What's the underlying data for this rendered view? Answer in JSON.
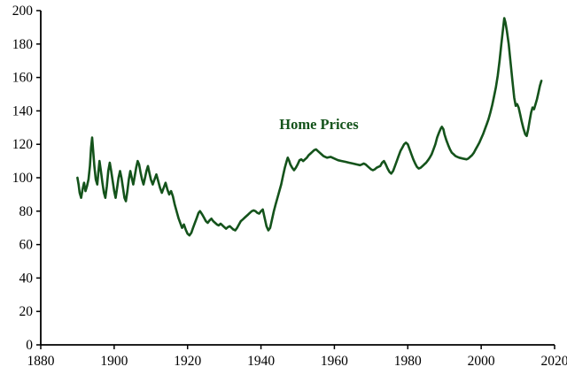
{
  "chart_data": {
    "type": "line",
    "title": "",
    "xlabel": "",
    "ylabel": "",
    "xlim": [
      1880,
      2020
    ],
    "ylim": [
      0,
      200
    ],
    "x_ticks": [
      1880,
      1900,
      1920,
      1940,
      1960,
      1980,
      2000,
      2020
    ],
    "y_ticks": [
      0,
      20,
      40,
      60,
      80,
      100,
      120,
      140,
      160,
      180,
      200
    ],
    "grid": false,
    "legend": false,
    "annotation": {
      "text": "Home Prices",
      "x": 1945,
      "y": 129
    },
    "colors": {
      "line": "#14531b",
      "axis": "#000000",
      "background": "#ffffff"
    },
    "series": [
      {
        "name": "Home Prices",
        "color": "#14531b",
        "points": [
          [
            1890,
            100
          ],
          [
            1890.3,
            96
          ],
          [
            1890.6,
            91
          ],
          [
            1891,
            88
          ],
          [
            1891.4,
            93
          ],
          [
            1891.8,
            97
          ],
          [
            1892.2,
            92
          ],
          [
            1892.6,
            95
          ],
          [
            1893,
            99
          ],
          [
            1893.4,
            107
          ],
          [
            1893.7,
            118
          ],
          [
            1894,
            124
          ],
          [
            1894.3,
            116
          ],
          [
            1894.6,
            107
          ],
          [
            1895,
            99
          ],
          [
            1895.4,
            96
          ],
          [
            1895.7,
            103
          ],
          [
            1896,
            110
          ],
          [
            1896.4,
            104
          ],
          [
            1896.8,
            97
          ],
          [
            1897.2,
            91
          ],
          [
            1897.6,
            88
          ],
          [
            1898,
            95
          ],
          [
            1898.4,
            104
          ],
          [
            1898.8,
            109
          ],
          [
            1899.2,
            104
          ],
          [
            1899.6,
            98
          ],
          [
            1900,
            92
          ],
          [
            1900.4,
            88
          ],
          [
            1900.8,
            94
          ],
          [
            1901.2,
            100
          ],
          [
            1901.6,
            104
          ],
          [
            1902,
            100
          ],
          [
            1902.4,
            94
          ],
          [
            1902.8,
            88
          ],
          [
            1903.2,
            86
          ],
          [
            1903.6,
            92
          ],
          [
            1904,
            99
          ],
          [
            1904.4,
            104
          ],
          [
            1904.8,
            100
          ],
          [
            1905.2,
            96
          ],
          [
            1905.6,
            101
          ],
          [
            1906,
            106
          ],
          [
            1906.4,
            110
          ],
          [
            1906.8,
            108
          ],
          [
            1907.2,
            103
          ],
          [
            1907.6,
            99
          ],
          [
            1908,
            96
          ],
          [
            1908.4,
            100
          ],
          [
            1908.8,
            104
          ],
          [
            1909.2,
            107
          ],
          [
            1909.6,
            103
          ],
          [
            1910,
            99
          ],
          [
            1910.5,
            96
          ],
          [
            1911,
            99
          ],
          [
            1911.5,
            102
          ],
          [
            1912,
            98
          ],
          [
            1912.5,
            94
          ],
          [
            1913,
            91
          ],
          [
            1913.5,
            94
          ],
          [
            1914,
            97
          ],
          [
            1914.5,
            93
          ],
          [
            1915,
            90
          ],
          [
            1915.5,
            92
          ],
          [
            1916,
            89
          ],
          [
            1916.5,
            84
          ],
          [
            1917,
            80
          ],
          [
            1917.5,
            76
          ],
          [
            1918,
            73
          ],
          [
            1918.5,
            70
          ],
          [
            1919,
            72
          ],
          [
            1919.5,
            69
          ],
          [
            1920,
            66.5
          ],
          [
            1920.5,
            65.5
          ],
          [
            1921,
            67
          ],
          [
            1921.5,
            70
          ],
          [
            1922,
            73
          ],
          [
            1922.5,
            76
          ],
          [
            1923,
            79
          ],
          [
            1923.4,
            80
          ],
          [
            1924,
            78
          ],
          [
            1924.5,
            76
          ],
          [
            1925,
            74
          ],
          [
            1925.5,
            73
          ],
          [
            1926,
            74.5
          ],
          [
            1926.5,
            75.5
          ],
          [
            1927,
            74
          ],
          [
            1927.5,
            73
          ],
          [
            1928,
            72
          ],
          [
            1928.5,
            71.5
          ],
          [
            1929,
            72.5
          ],
          [
            1929.5,
            71.5
          ],
          [
            1930,
            70.5
          ],
          [
            1930.5,
            69.5
          ],
          [
            1931,
            70.5
          ],
          [
            1931.5,
            71
          ],
          [
            1932,
            70
          ],
          [
            1932.5,
            69
          ],
          [
            1933,
            68.5
          ],
          [
            1933.5,
            70
          ],
          [
            1934,
            72
          ],
          [
            1934.5,
            74
          ],
          [
            1935,
            75
          ],
          [
            1935.5,
            76
          ],
          [
            1936,
            77
          ],
          [
            1936.5,
            78
          ],
          [
            1937,
            79
          ],
          [
            1937.5,
            80
          ],
          [
            1938,
            80.5
          ],
          [
            1938.5,
            80
          ],
          [
            1939,
            79
          ],
          [
            1939.5,
            78.5
          ],
          [
            1940,
            80
          ],
          [
            1940.5,
            81
          ],
          [
            1941,
            76
          ],
          [
            1941.5,
            71
          ],
          [
            1942,
            68.5
          ],
          [
            1942.5,
            70
          ],
          [
            1943,
            75
          ],
          [
            1943.5,
            80
          ],
          [
            1944,
            84
          ],
          [
            1944.5,
            88
          ],
          [
            1945,
            92
          ],
          [
            1945.5,
            96
          ],
          [
            1946,
            101
          ],
          [
            1946.5,
            106
          ],
          [
            1947,
            110
          ],
          [
            1947.3,
            112
          ],
          [
            1947.7,
            110
          ],
          [
            1948,
            108
          ],
          [
            1948.5,
            106
          ],
          [
            1949,
            104.5
          ],
          [
            1949.5,
            106
          ],
          [
            1950,
            108
          ],
          [
            1950.5,
            110.5
          ],
          [
            1951,
            111
          ],
          [
            1951.5,
            110
          ],
          [
            1952,
            111
          ],
          [
            1952.5,
            112
          ],
          [
            1953,
            113.5
          ],
          [
            1953.5,
            114.5
          ],
          [
            1954,
            115.5
          ],
          [
            1954.5,
            116.5
          ],
          [
            1955,
            117
          ],
          [
            1955.5,
            116
          ],
          [
            1956,
            115
          ],
          [
            1956.5,
            114
          ],
          [
            1957,
            113
          ],
          [
            1957.5,
            112.5
          ],
          [
            1958,
            112
          ],
          [
            1959,
            112.5
          ],
          [
            1960,
            111.5
          ],
          [
            1961,
            110.5
          ],
          [
            1962,
            110
          ],
          [
            1963,
            109.5
          ],
          [
            1964,
            109
          ],
          [
            1965,
            108.5
          ],
          [
            1966,
            108
          ],
          [
            1967,
            107.5
          ],
          [
            1967.5,
            108
          ],
          [
            1968,
            108.5
          ],
          [
            1968.5,
            108
          ],
          [
            1969,
            107
          ],
          [
            1969.5,
            106
          ],
          [
            1970,
            105
          ],
          [
            1970.5,
            104.5
          ],
          [
            1971,
            105
          ],
          [
            1971.5,
            106
          ],
          [
            1972,
            106.5
          ],
          [
            1972.5,
            107
          ],
          [
            1973,
            109
          ],
          [
            1973.5,
            110
          ],
          [
            1974,
            108
          ],
          [
            1974.5,
            105.5
          ],
          [
            1975,
            103.5
          ],
          [
            1975.5,
            102.5
          ],
          [
            1976,
            104
          ],
          [
            1976.5,
            107
          ],
          [
            1977,
            110
          ],
          [
            1977.5,
            113
          ],
          [
            1978,
            116
          ],
          [
            1978.5,
            118
          ],
          [
            1979,
            120
          ],
          [
            1979.5,
            121
          ],
          [
            1980,
            120
          ],
          [
            1980.5,
            117
          ],
          [
            1981,
            114
          ],
          [
            1981.5,
            111
          ],
          [
            1982,
            108.5
          ],
          [
            1982.5,
            106.5
          ],
          [
            1983,
            105.5
          ],
          [
            1983.5,
            106
          ],
          [
            1984,
            107
          ],
          [
            1984.5,
            108
          ],
          [
            1985,
            109
          ],
          [
            1985.5,
            110.5
          ],
          [
            1986,
            112
          ],
          [
            1986.5,
            114
          ],
          [
            1987,
            117
          ],
          [
            1987.5,
            120
          ],
          [
            1988,
            124
          ],
          [
            1988.5,
            127
          ],
          [
            1989,
            129.5
          ],
          [
            1989.3,
            130.5
          ],
          [
            1989.7,
            129
          ],
          [
            1990,
            126
          ],
          [
            1990.5,
            122.5
          ],
          [
            1991,
            119.5
          ],
          [
            1991.5,
            117
          ],
          [
            1992,
            115
          ],
          [
            1992.5,
            114
          ],
          [
            1993,
            113
          ],
          [
            1993.5,
            112.5
          ],
          [
            1994,
            112
          ],
          [
            1995,
            111.5
          ],
          [
            1996,
            111
          ],
          [
            1996.5,
            111.5
          ],
          [
            1997,
            112.5
          ],
          [
            1997.5,
            113.5
          ],
          [
            1998,
            115
          ],
          [
            1998.5,
            117
          ],
          [
            1999,
            119
          ],
          [
            1999.5,
            121
          ],
          [
            2000,
            123.5
          ],
          [
            2000.5,
            126
          ],
          [
            2001,
            129
          ],
          [
            2001.5,
            132
          ],
          [
            2002,
            135
          ],
          [
            2002.5,
            139
          ],
          [
            2003,
            143.5
          ],
          [
            2003.5,
            148.5
          ],
          [
            2004,
            154
          ],
          [
            2004.5,
            161
          ],
          [
            2005,
            170
          ],
          [
            2005.5,
            180
          ],
          [
            2006,
            190
          ],
          [
            2006.3,
            195.5
          ],
          [
            2006.6,
            193
          ],
          [
            2007,
            188
          ],
          [
            2007.5,
            180
          ],
          [
            2008,
            169
          ],
          [
            2008.5,
            158
          ],
          [
            2009,
            148
          ],
          [
            2009.4,
            143
          ],
          [
            2009.8,
            144
          ],
          [
            2010.2,
            142
          ],
          [
            2010.6,
            138
          ],
          [
            2011,
            134
          ],
          [
            2011.5,
            129.5
          ],
          [
            2012,
            126
          ],
          [
            2012.4,
            125
          ],
          [
            2012.8,
            129
          ],
          [
            2013.2,
            134
          ],
          [
            2013.6,
            139
          ],
          [
            2014,
            142
          ],
          [
            2014.4,
            141
          ],
          [
            2014.8,
            144
          ],
          [
            2015.2,
            147
          ],
          [
            2015.6,
            151
          ],
          [
            2016,
            155
          ],
          [
            2016.4,
            158
          ]
        ]
      }
    ]
  }
}
